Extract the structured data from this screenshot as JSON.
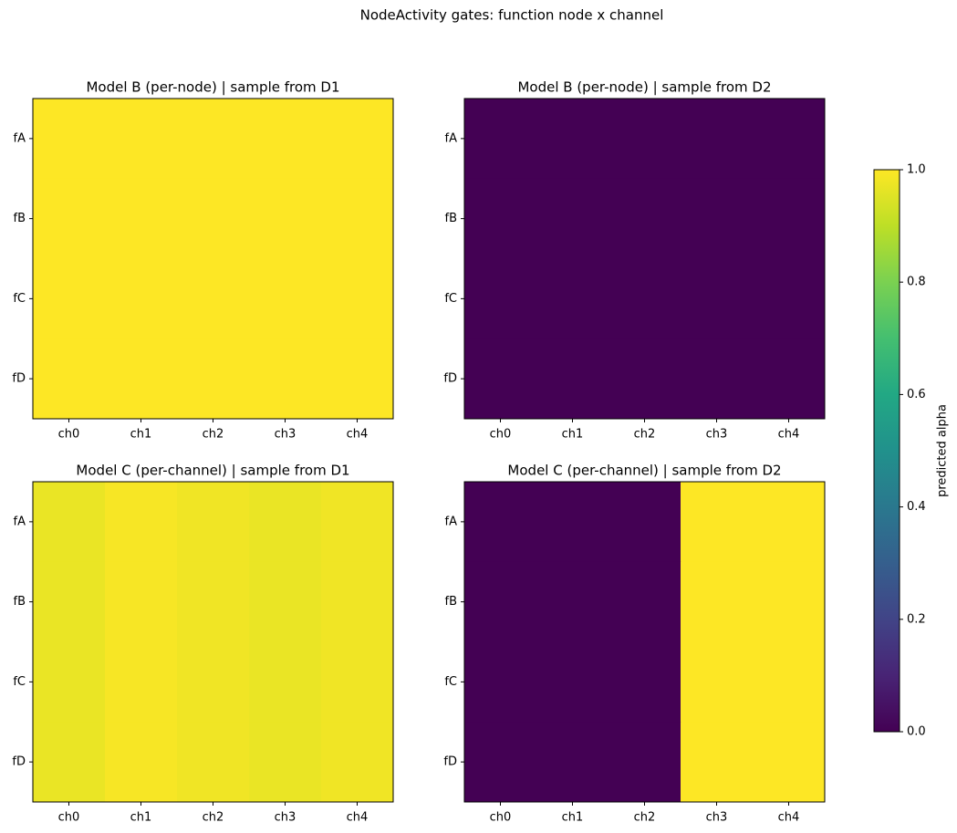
{
  "title": "NodeActivity gates: function node x channel",
  "chart_data": [
    {
      "type": "heatmap",
      "title": "Model B (per-node) | sample from D1",
      "x": [
        "ch0",
        "ch1",
        "ch2",
        "ch3",
        "ch4"
      ],
      "y": [
        "fA",
        "fB",
        "fC",
        "fD"
      ],
      "values": [
        [
          1.0,
          1.0,
          1.0,
          1.0,
          1.0
        ],
        [
          1.0,
          1.0,
          1.0,
          1.0,
          1.0
        ],
        [
          1.0,
          1.0,
          1.0,
          1.0,
          1.0
        ],
        [
          1.0,
          1.0,
          1.0,
          1.0,
          1.0
        ]
      ]
    },
    {
      "type": "heatmap",
      "title": "Model B (per-node) | sample from D2",
      "x": [
        "ch0",
        "ch1",
        "ch2",
        "ch3",
        "ch4"
      ],
      "y": [
        "fA",
        "fB",
        "fC",
        "fD"
      ],
      "values": [
        [
          0.0,
          0.0,
          0.0,
          0.0,
          0.0
        ],
        [
          0.0,
          0.0,
          0.0,
          0.0,
          0.0
        ],
        [
          0.0,
          0.0,
          0.0,
          0.0,
          0.0
        ],
        [
          0.0,
          0.0,
          0.0,
          0.0,
          0.0
        ]
      ]
    },
    {
      "type": "heatmap",
      "title": "Model C (per-channel) | sample from D1",
      "x": [
        "ch0",
        "ch1",
        "ch2",
        "ch3",
        "ch4"
      ],
      "y": [
        "fA",
        "fB",
        "fC",
        "fD"
      ],
      "values": [
        [
          0.97,
          0.99,
          0.98,
          0.97,
          0.98
        ],
        [
          0.97,
          0.99,
          0.98,
          0.97,
          0.98
        ],
        [
          0.97,
          0.99,
          0.98,
          0.97,
          0.98
        ],
        [
          0.97,
          0.99,
          0.98,
          0.97,
          0.98
        ]
      ]
    },
    {
      "type": "heatmap",
      "title": "Model C (per-channel) | sample from D2",
      "x": [
        "ch0",
        "ch1",
        "ch2",
        "ch3",
        "ch4"
      ],
      "y": [
        "fA",
        "fB",
        "fC",
        "fD"
      ],
      "values": [
        [
          0.0,
          0.0,
          0.0,
          1.0,
          1.0
        ],
        [
          0.0,
          0.0,
          0.0,
          1.0,
          1.0
        ],
        [
          0.0,
          0.0,
          0.0,
          1.0,
          1.0
        ],
        [
          0.0,
          0.0,
          0.0,
          1.0,
          1.0
        ]
      ]
    }
  ],
  "colorbar": {
    "label": "predicted alpha",
    "colormap": "viridis",
    "lim": [
      0.0,
      1.0
    ],
    "ticks": [
      {
        "value": 0,
        "label": "0.0"
      },
      {
        "value": 0.2,
        "label": "0.2"
      },
      {
        "value": 0.4,
        "label": "0.4"
      },
      {
        "value": 0.6,
        "label": "0.6"
      },
      {
        "value": 0.8,
        "label": "0.8"
      },
      {
        "value": 1,
        "label": "1.0"
      }
    ]
  }
}
